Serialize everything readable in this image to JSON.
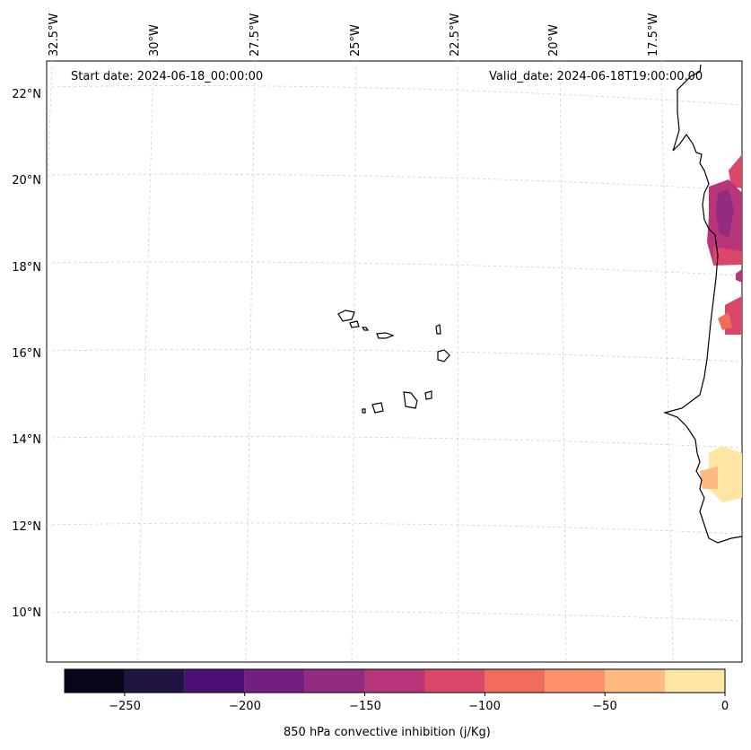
{
  "map": {
    "start_date_text": "Start date: 2024-06-18_00:00:00",
    "valid_date_text": "Valid_date: 2024-06-18T19:00:00.00",
    "lon_labels": [
      "32.5°W",
      "30°W",
      "27.5°W",
      "25°W",
      "22.5°W",
      "20°W",
      "17.5°W"
    ],
    "lat_labels": [
      "22°N",
      "20°N",
      "18°N",
      "16°N",
      "14°N",
      "12°N",
      "10°N"
    ],
    "variable": "850 hPa convective inhibition",
    "units": "j/Kg"
  },
  "colorbar": {
    "label": "850 hPa convective inhibition (j/Kg)",
    "tick_labels": [
      "−250",
      "−200",
      "−150",
      "−100",
      "−50",
      "0"
    ],
    "levels": [
      -275,
      -250,
      -225,
      -200,
      -175,
      -150,
      -125,
      -100,
      -75,
      -50,
      -25,
      0
    ],
    "colors": [
      "#07061a",
      "#211342",
      "#4c0f75",
      "#731f81",
      "#932b80",
      "#b63679",
      "#da4769",
      "#f06c5c",
      "#fc9068",
      "#feba80",
      "#fde6a4"
    ]
  }
}
